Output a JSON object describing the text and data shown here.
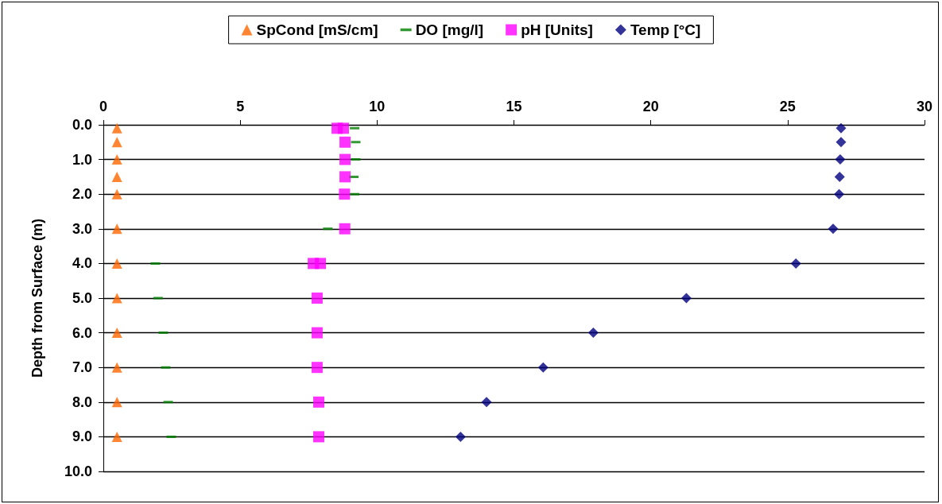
{
  "chart_data": {
    "type": "scatter",
    "ylabel": "Depth from Surface (m)",
    "xlim": [
      0,
      30
    ],
    "xticks": [
      0,
      5,
      10,
      15,
      20,
      25,
      30
    ],
    "ylim": [
      10,
      0
    ],
    "yticks": [
      {
        "value": 0,
        "label": "0.0"
      },
      {
        "value": 1,
        "label": "1.0"
      },
      {
        "value": 2,
        "label": "2.0"
      },
      {
        "value": 3,
        "label": "3.0"
      },
      {
        "value": 4,
        "label": "4.0"
      },
      {
        "value": 5,
        "label": "5.0"
      },
      {
        "value": 6,
        "label": "6.0"
      },
      {
        "value": 7,
        "label": "7.0"
      },
      {
        "value": 8,
        "label": "8.0"
      },
      {
        "value": 9,
        "label": "9.0"
      },
      {
        "value": 10,
        "label": "10.0"
      }
    ],
    "grid": "y",
    "legend": "top",
    "series": [
      {
        "name": "SpCond [mS/cm]",
        "color": "#ff6600",
        "marker": "triangle",
        "x": [
          0.5,
          0.5,
          0.5,
          0.5,
          0.5,
          0.5,
          0.5,
          0.5,
          0.5,
          0.5,
          0.5,
          0.5
        ],
        "values": [
          0.1,
          0.5,
          1,
          1.5,
          2,
          3,
          4,
          5,
          6,
          7,
          8,
          9
        ]
      },
      {
        "name": "DO [mg/l]",
        "color": "#008000",
        "x": [
          9.18,
          9.22,
          9.22,
          9.15,
          9.18,
          8.2,
          1.9,
          2.0,
          2.19,
          2.28,
          2.37,
          2.48
        ],
        "values": [
          0.1,
          0.5,
          1,
          1.5,
          2,
          3,
          4,
          5,
          6,
          7,
          8,
          9
        ]
      },
      {
        "name": "pH [Units]",
        "color": "#ff00ff",
        "marker": "square",
        "x": [
          8.54,
          8.77,
          8.83,
          8.83,
          8.83,
          8.81,
          8.82,
          7.67,
          7.93,
          7.81,
          7.81,
          7.81,
          7.87,
          7.87
        ],
        "values": [
          0.1,
          0.1,
          0.5,
          1,
          1.5,
          2,
          3,
          4,
          4,
          5,
          6,
          7,
          8,
          9
        ]
      },
      {
        "name": "Temp [°C]",
        "color": "#000080",
        "marker": "diamond",
        "x": [
          26.95,
          26.95,
          26.92,
          26.9,
          26.88,
          26.66,
          25.3,
          21.3,
          17.9,
          16.07,
          14.0,
          13.05
        ],
        "values": [
          0.1,
          0.5,
          1,
          1.5,
          2,
          3,
          4,
          5,
          6,
          7,
          8,
          9
        ]
      }
    ]
  }
}
